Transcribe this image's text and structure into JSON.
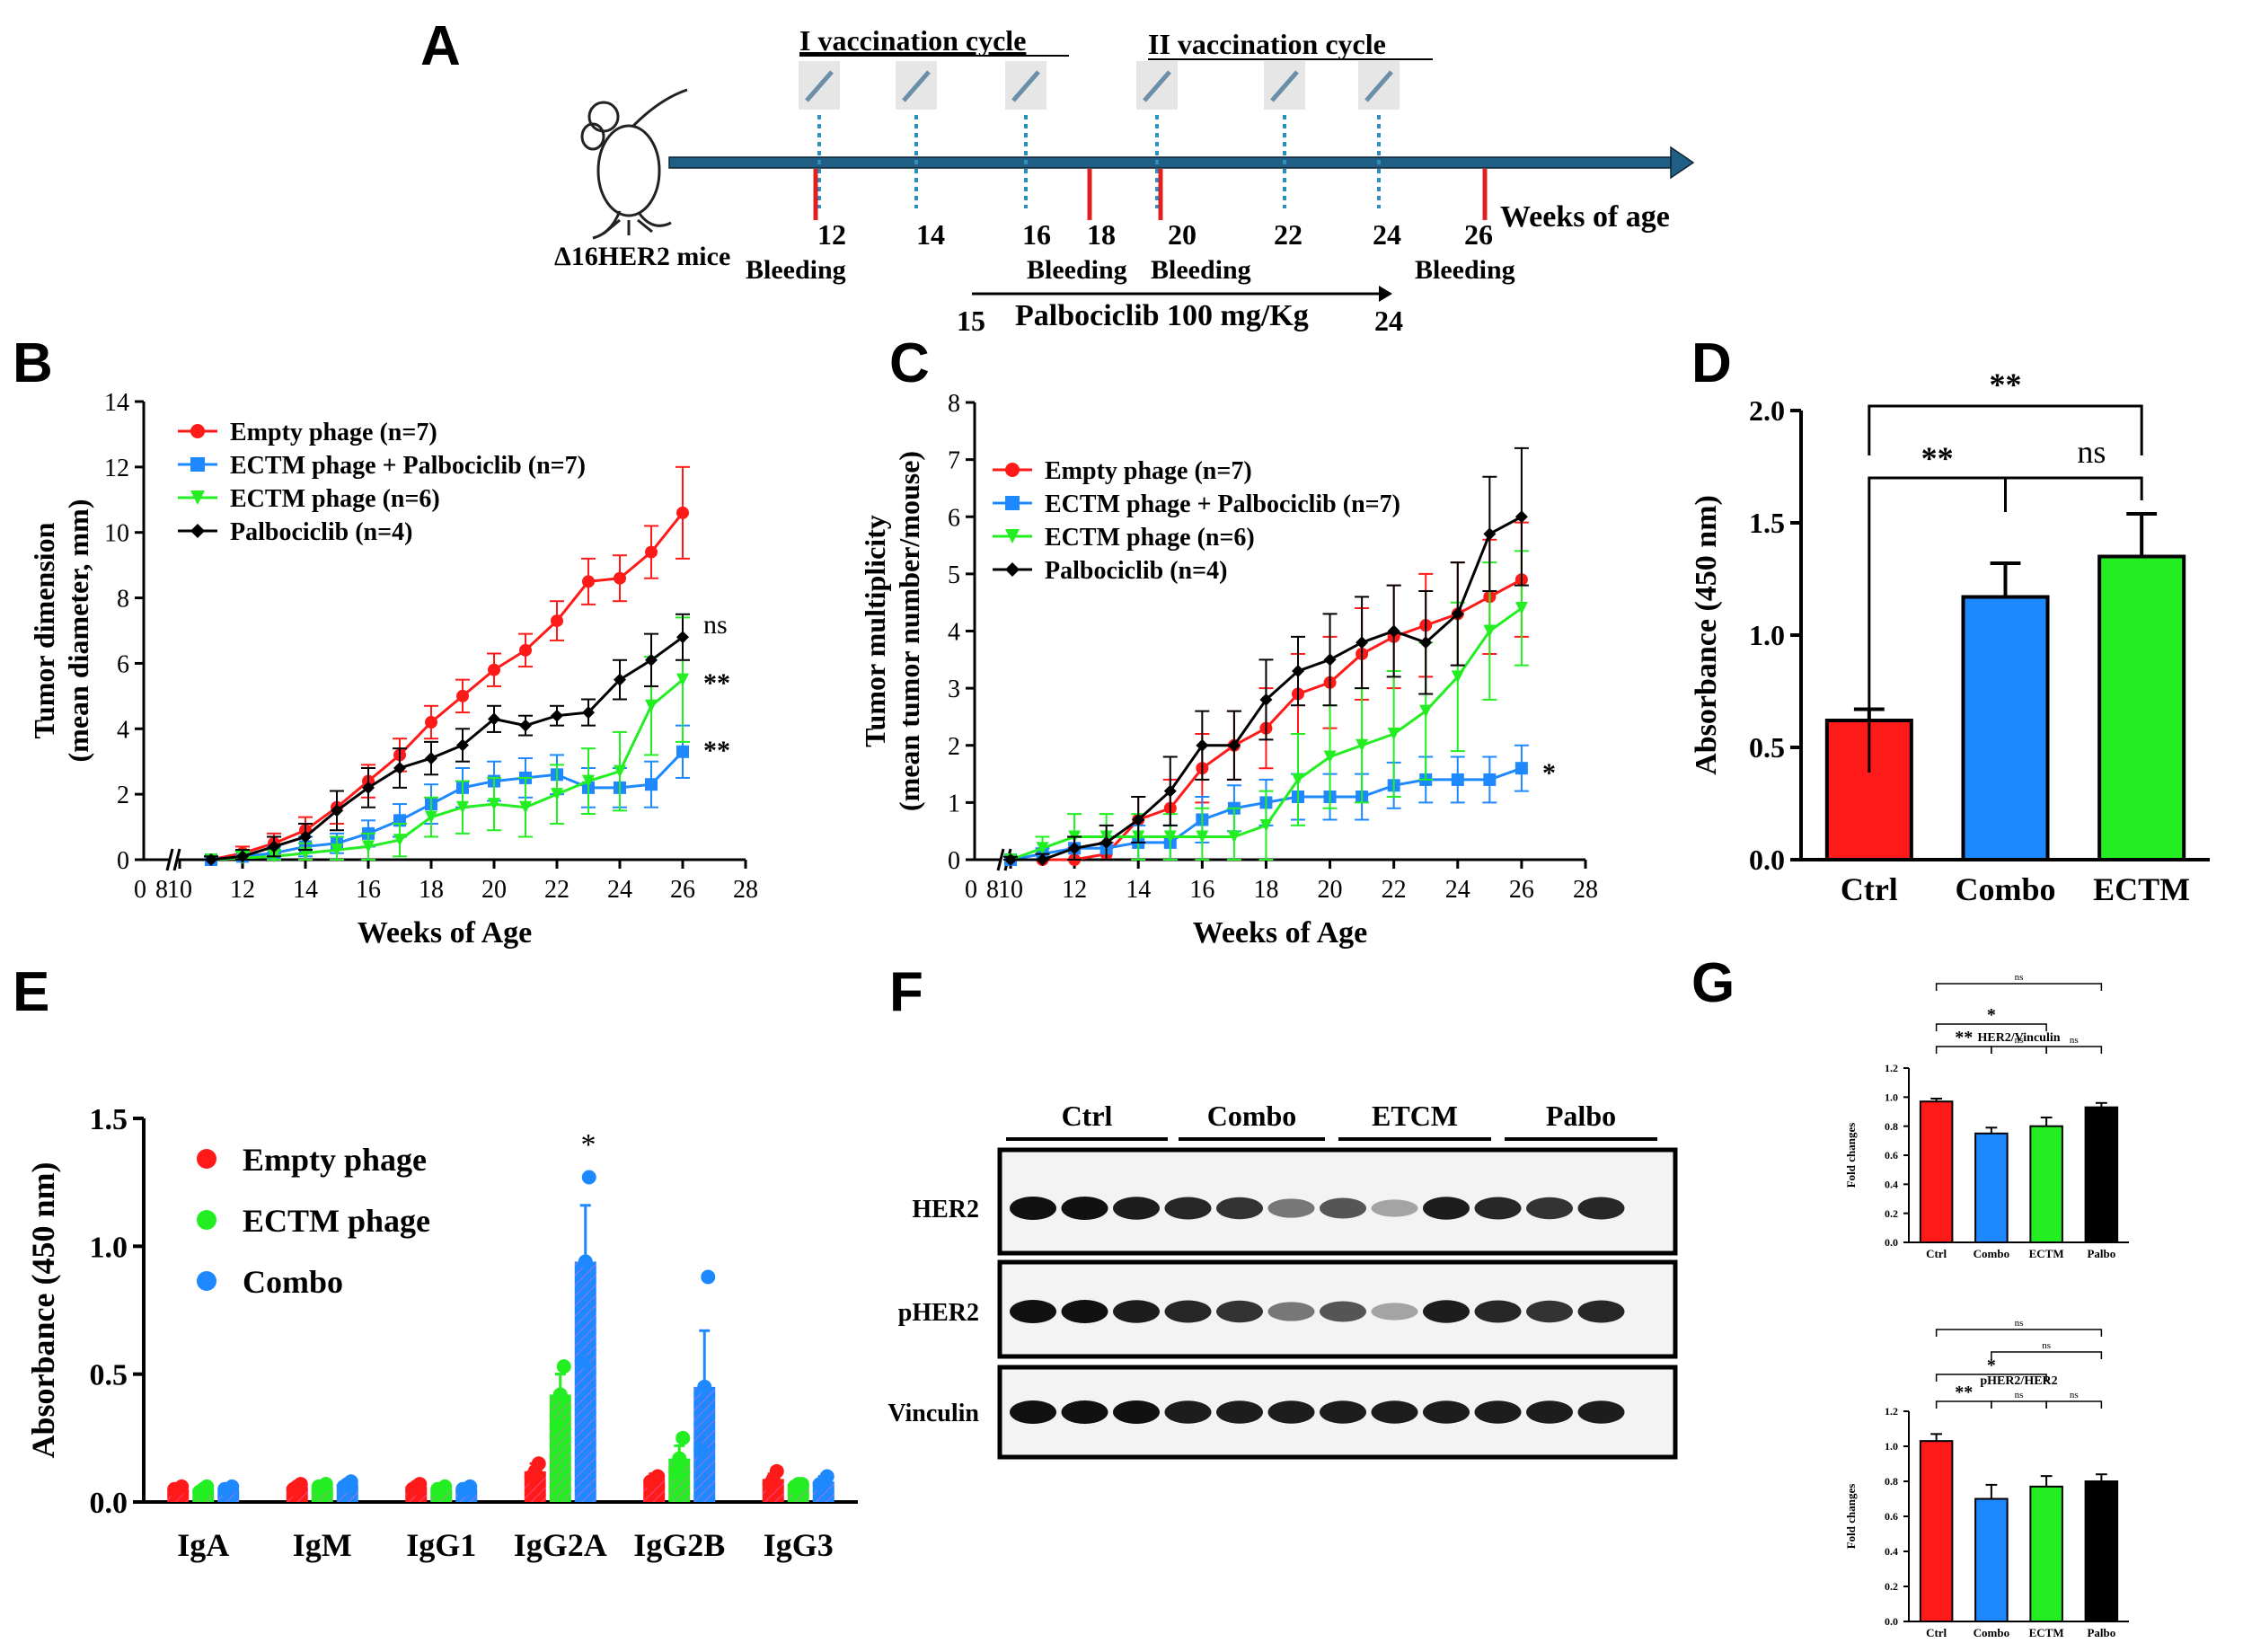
{
  "panels": {
    "A": "A",
    "B": "B",
    "C": "C",
    "D": "D",
    "E": "E",
    "F": "F",
    "G": "G"
  },
  "timeline": {
    "cycle1": "I  vaccination cycle",
    "cycle2": "II  vaccination cycle",
    "mice": "Δ16HER2 mice",
    "weeks_label": "Weeks  of age",
    "week_ticks": [
      "12",
      "14",
      "16",
      "18",
      "20",
      "22",
      "24",
      "26"
    ],
    "bleeding": [
      "Bleeding",
      "Bleeding",
      "Bleeding",
      "Bleeding"
    ],
    "palbo_text": "Palbociclib  100 mg/Kg",
    "palbo_start": "15",
    "palbo_end": "24"
  },
  "blot": {
    "groups": [
      "Ctrl",
      "Combo",
      "ETCM",
      "Palbo"
    ],
    "rows": [
      "HER2",
      "pHER2",
      "Vinculin"
    ]
  },
  "colors": {
    "red": "#ff1a1a",
    "blue": "#1e88ff",
    "green": "#22ee22",
    "black": "#000000",
    "darkblue": "#1f5f85",
    "teal": "#2b8fbf"
  },
  "chart_data": [
    {
      "id": "B",
      "type": "line",
      "xlabel": "Weeks of Age",
      "ylabel": "Tumor dimension",
      "ylabel2": "(mean diameter, mm)",
      "xlim": [
        0,
        28
      ],
      "ylim": [
        0,
        14
      ],
      "xticks": [
        "0",
        "8",
        "10",
        "12",
        "14",
        "16",
        "18",
        "20",
        "22",
        "24",
        "26",
        "28"
      ],
      "yticks": [
        "0",
        "2",
        "4",
        "6",
        "8",
        "10",
        "12",
        "14"
      ],
      "x": [
        11,
        12,
        13,
        14,
        15,
        16,
        17,
        18,
        19,
        20,
        21,
        22,
        23,
        24,
        25,
        26
      ],
      "series": [
        {
          "name": "Empty phage (n=7)",
          "color": "red",
          "marker": "circle",
          "values": [
            0,
            0.2,
            0.5,
            0.9,
            1.6,
            2.4,
            3.2,
            4.2,
            5.0,
            5.8,
            6.4,
            7.3,
            8.5,
            8.6,
            9.4,
            10.6
          ],
          "err": [
            0.1,
            0.2,
            0.3,
            0.4,
            0.5,
            0.5,
            0.5,
            0.5,
            0.5,
            0.5,
            0.5,
            0.6,
            0.7,
            0.7,
            0.8,
            1.4
          ]
        },
        {
          "name": "ECTM phage + Palbociclib (n=7)",
          "color": "blue",
          "marker": "square",
          "values": [
            0,
            0.1,
            0.2,
            0.4,
            0.5,
            0.8,
            1.2,
            1.7,
            2.2,
            2.4,
            2.5,
            2.6,
            2.2,
            2.2,
            2.3,
            3.3
          ],
          "err": [
            0.1,
            0.2,
            0.2,
            0.3,
            0.3,
            0.4,
            0.5,
            0.6,
            0.6,
            0.6,
            0.6,
            0.6,
            0.6,
            0.6,
            0.7,
            0.8
          ]
        },
        {
          "name": "ECTM phage (n=6)",
          "color": "green",
          "marker": "triangle-down",
          "values": [
            0,
            0.05,
            0.1,
            0.2,
            0.3,
            0.4,
            0.6,
            1.3,
            1.6,
            1.7,
            1.6,
            2.0,
            2.4,
            2.7,
            4.7,
            5.5
          ],
          "err": [
            0.1,
            0.2,
            0.2,
            0.3,
            0.4,
            0.4,
            0.5,
            0.6,
            0.8,
            0.8,
            0.9,
            0.9,
            1.0,
            1.2,
            1.5,
            1.9
          ]
        },
        {
          "name": "Palbociclib (n=4)",
          "color": "black",
          "marker": "diamond",
          "values": [
            0,
            0.1,
            0.4,
            0.7,
            1.5,
            2.2,
            2.8,
            3.1,
            3.5,
            4.3,
            4.1,
            4.4,
            4.5,
            5.5,
            6.1,
            6.8
          ],
          "err": [
            0.1,
            0.2,
            0.3,
            0.4,
            0.6,
            0.6,
            0.6,
            0.5,
            0.5,
            0.4,
            0.3,
            0.3,
            0.4,
            0.6,
            0.8,
            0.7
          ]
        }
      ],
      "annotations": [
        "ns",
        "**",
        "**"
      ]
    },
    {
      "id": "C",
      "type": "line",
      "xlabel": "Weeks of Age",
      "ylabel": "Tumor multiplicity",
      "ylabel2": "(mean tumor number/mouse)",
      "xlim": [
        0,
        28
      ],
      "ylim": [
        0,
        8
      ],
      "xticks": [
        "0",
        "8",
        "10",
        "12",
        "14",
        "16",
        "18",
        "20",
        "22",
        "24",
        "26",
        "28"
      ],
      "yticks": [
        "0",
        "1",
        "2",
        "3",
        "4",
        "5",
        "6",
        "7",
        "8"
      ],
      "x": [
        10,
        11,
        12,
        13,
        14,
        15,
        16,
        17,
        18,
        19,
        20,
        21,
        22,
        23,
        24,
        25,
        26
      ],
      "series": [
        {
          "name": "Empty phage (n=7)",
          "color": "red",
          "marker": "circle",
          "values": [
            0,
            0,
            0,
            0.1,
            0.7,
            0.9,
            1.6,
            2.0,
            2.3,
            2.9,
            3.1,
            3.6,
            3.9,
            4.1,
            4.3,
            4.6,
            4.9
          ],
          "err": [
            0.05,
            0.1,
            0.2,
            0.2,
            0.4,
            0.5,
            0.6,
            0.6,
            0.7,
            0.7,
            0.8,
            0.8,
            0.9,
            0.9,
            0.9,
            1.0,
            1.0
          ]
        },
        {
          "name": "ECTM phage + Palbociclib (n=7)",
          "color": "blue",
          "marker": "square",
          "values": [
            0,
            0.1,
            0.2,
            0.2,
            0.3,
            0.3,
            0.7,
            0.9,
            1.0,
            1.1,
            1.1,
            1.1,
            1.3,
            1.4,
            1.4,
            1.4,
            1.6
          ],
          "err": [
            0.05,
            0.1,
            0.2,
            0.2,
            0.3,
            0.3,
            0.4,
            0.4,
            0.4,
            0.4,
            0.4,
            0.4,
            0.4,
            0.4,
            0.4,
            0.4,
            0.4
          ]
        },
        {
          "name": "ECTM phage (n=6)",
          "color": "green",
          "marker": "triangle-down",
          "values": [
            0,
            0.2,
            0.4,
            0.4,
            0.4,
            0.4,
            0.4,
            0.4,
            0.6,
            1.4,
            1.8,
            2.0,
            2.2,
            2.6,
            3.2,
            4.0,
            4.4
          ],
          "err": [
            0.05,
            0.2,
            0.4,
            0.4,
            0.4,
            0.4,
            0.5,
            0.5,
            0.6,
            0.8,
            0.9,
            1.0,
            1.1,
            1.2,
            1.3,
            1.2,
            1.0
          ]
        },
        {
          "name": "Palbociclib (n=4)",
          "color": "black",
          "marker": "diamond",
          "values": [
            0,
            0,
            0.2,
            0.3,
            0.7,
            1.2,
            2.0,
            2.0,
            2.8,
            3.3,
            3.5,
            3.8,
            4.0,
            3.8,
            4.3,
            5.7,
            6.0
          ],
          "err": [
            0.05,
            0.1,
            0.2,
            0.3,
            0.4,
            0.6,
            0.6,
            0.6,
            0.7,
            0.6,
            0.8,
            0.8,
            0.8,
            0.9,
            0.9,
            1.0,
            1.2
          ]
        }
      ],
      "annotations": [
        "*"
      ]
    },
    {
      "id": "D",
      "type": "bar",
      "ylabel": "Absorbance (450 nm)",
      "ylim": [
        0,
        2.0
      ],
      "yticks": [
        "0.0",
        "0.5",
        "1.0",
        "1.5",
        "2.0"
      ],
      "categories": [
        "Ctrl",
        "Combo",
        "ECTM"
      ],
      "values": [
        0.62,
        1.17,
        1.35
      ],
      "err": [
        0.05,
        0.15,
        0.19
      ],
      "colors": [
        "red",
        "blue",
        "green"
      ],
      "annotations": [
        "**",
        "**",
        "ns"
      ]
    },
    {
      "id": "E",
      "type": "bar",
      "ylabel": "Absorbance (450 nm)",
      "ylim": [
        0,
        1.5
      ],
      "yticks": [
        "0.0",
        "0.5",
        "1.0",
        "1.5"
      ],
      "categories": [
        "IgA",
        "IgM",
        "IgG1",
        "IgG2A",
        "IgG2B",
        "IgG3"
      ],
      "series": [
        {
          "name": "Empty phage",
          "color": "red",
          "values": [
            0.05,
            0.06,
            0.06,
            0.12,
            0.09,
            0.09
          ],
          "points": [
            [
              0.05,
              0.06
            ],
            [
              0.05,
              0.07
            ],
            [
              0.05,
              0.07
            ],
            [
              0.1,
              0.15
            ],
            [
              0.08,
              0.1
            ],
            [
              0.07,
              0.12
            ]
          ]
        },
        {
          "name": "ECTM phage",
          "color": "green",
          "values": [
            0.05,
            0.06,
            0.05,
            0.42,
            0.17,
            0.07
          ],
          "points": [
            [
              0.04,
              0.06
            ],
            [
              0.06,
              0.07
            ],
            [
              0.05,
              0.06
            ],
            [
              0.3,
              0.53
            ],
            [
              0.12,
              0.25
            ],
            [
              0.06,
              0.07
            ]
          ]
        },
        {
          "name": "Combo",
          "color": "blue",
          "values": [
            0.05,
            0.07,
            0.05,
            0.94,
            0.45,
            0.08
          ],
          "points": [
            [
              0.05,
              0.06
            ],
            [
              0.06,
              0.08
            ],
            [
              0.05,
              0.06
            ],
            [
              0.55,
              1.27
            ],
            [
              0.2,
              0.88
            ],
            [
              0.07,
              0.1
            ]
          ]
        }
      ],
      "err": [
        [
          0.01,
          0.01,
          0.01,
          0.03,
          0.02,
          0.02
        ],
        [
          0.01,
          0.01,
          0.01,
          0.08,
          0.05,
          0.01
        ],
        [
          0.01,
          0.01,
          0.01,
          0.22,
          0.22,
          0.02
        ]
      ],
      "annotations": [
        "*"
      ]
    },
    {
      "id": "G1",
      "type": "bar",
      "title": "HER2/Vinculin",
      "ylabel": "Fold changes",
      "ylim": [
        0,
        1.2
      ],
      "yticks": [
        "0.0",
        "0.2",
        "0.4",
        "0.6",
        "0.8",
        "1.0",
        "1.2"
      ],
      "categories": [
        "Ctrl",
        "Combo",
        "ECTM",
        "Palbo"
      ],
      "values": [
        0.97,
        0.75,
        0.8,
        0.93
      ],
      "err": [
        0.02,
        0.04,
        0.06,
        0.03
      ],
      "colors": [
        "red",
        "blue",
        "green",
        "black"
      ],
      "annotations": [
        "ns",
        "*",
        "**",
        "ns",
        "ns"
      ]
    },
    {
      "id": "G2",
      "type": "bar",
      "title": "pHER2/HER2",
      "ylabel": "Fold changes",
      "ylim": [
        0,
        1.2
      ],
      "yticks": [
        "0.0",
        "0.2",
        "0.4",
        "0.6",
        "0.8",
        "1.0",
        "1.2"
      ],
      "categories": [
        "Ctrl",
        "Combo",
        "ECTM",
        "Palbo"
      ],
      "values": [
        1.03,
        0.7,
        0.77,
        0.8
      ],
      "err": [
        0.04,
        0.08,
        0.06,
        0.04
      ],
      "colors": [
        "red",
        "blue",
        "green",
        "black"
      ],
      "annotations": [
        "ns",
        "ns",
        "*",
        "**",
        "ns",
        "ns"
      ]
    }
  ]
}
